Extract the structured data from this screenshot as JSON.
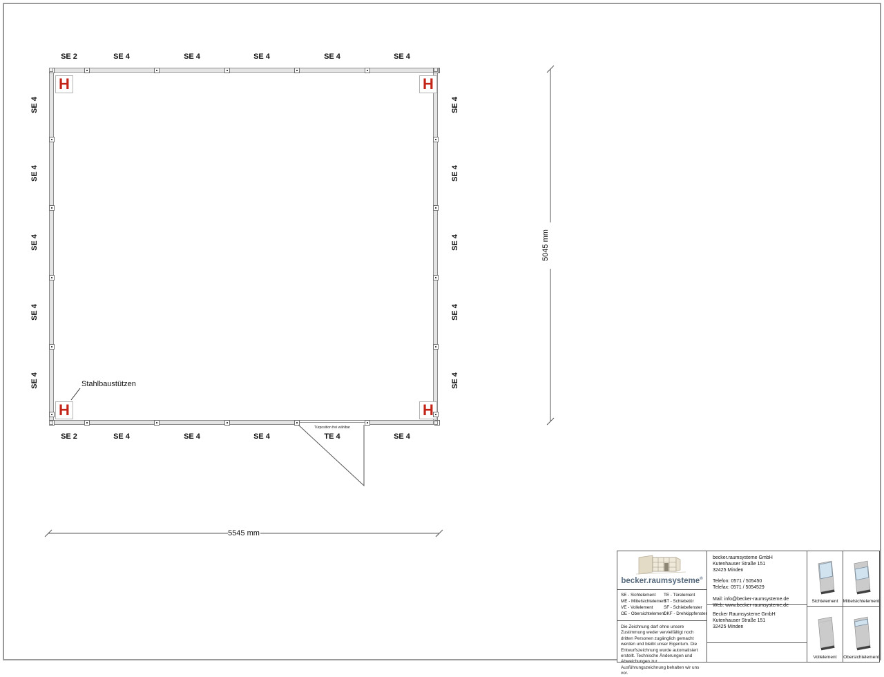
{
  "plan": {
    "top_labels": [
      "SE 2",
      "SE 4",
      "SE 4",
      "SE 4",
      "SE 4",
      "SE 4"
    ],
    "bottom_labels": [
      "SE 2",
      "SE 4",
      "SE 4",
      "SE 4",
      "TE 4",
      "SE 4"
    ],
    "left_labels": [
      "SE 4",
      "SE 4",
      "SE 4",
      "SE 4",
      "SE 4"
    ],
    "right_labels": [
      "SE 4",
      "SE 4",
      "SE 4",
      "SE 4",
      "SE 4"
    ],
    "column_symbol": "H",
    "column_annotation": "Stahlbaustützen",
    "door_note": "Türposition frei wählbar"
  },
  "dimensions": {
    "width_label": "5545 mm",
    "height_label": "5045 mm"
  },
  "colors": {
    "column_red": "#c42418",
    "logo_blue": "#54687c",
    "glass_blue": "#d2e3f0",
    "panel_gray": "#cbcbcb",
    "panel_base": "#404040"
  },
  "titleblock": {
    "logo_text": "becker.raumsysteme",
    "logo_reg": "®",
    "legend": {
      "col1": [
        "SE - Sichtelement",
        "ME - Mittelsichtelement",
        "VE - Vollelement",
        "OE - Obersichtelement"
      ],
      "col2": [
        "TE - Türelement",
        "ST - Schiebetür",
        "SF - Schiebefenster",
        "DKF - Drehkippfenster"
      ]
    },
    "disclaimer": "Die Zeichnung darf ohne unsere Zustimmung weder vervielfältigt noch dritten Personen zugänglich gemacht werden und bleibt unser Eigentum. Die Entwurfszeichnung wurde automatisiert erstellt. Technische Änderungen und Abweichungen zur Ausführungszeichnung behalten wir uns vor.",
    "contact": {
      "address": [
        "becker.raumsysteme GmbH",
        "Kutenhauser Straße 151",
        "32425 Minden"
      ],
      "phones": [
        "Telefon: 0571 / 505450",
        "Telefax: 0571 / 5054529"
      ],
      "web": [
        "Mail: info@becker-raumsysteme.de",
        "Web: www.becker-raumsysteme.de"
      ]
    },
    "owner": [
      "Becker Raumsysteme GmbH",
      "Kutenhauser Straße 151",
      "32425 Minden"
    ],
    "thumbnails": [
      {
        "label": "Sichtelement"
      },
      {
        "label": "Mittelsichtelement"
      },
      {
        "label": "Vollelement"
      },
      {
        "label": "Obersichtelement"
      }
    ]
  }
}
